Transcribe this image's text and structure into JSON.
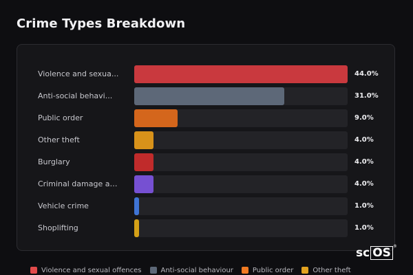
{
  "page": {
    "title": "Crime Types Breakdown",
    "logo_text": "scOS",
    "logo_mark": "®"
  },
  "chart_data": {
    "type": "bar",
    "orientation": "horizontal",
    "title": "Crime Types Breakdown",
    "categories": [
      "Violence and sexua...",
      "Anti-social behavi...",
      "Public order",
      "Other theft",
      "Burglary",
      "Criminal damage an...",
      "Vehicle crime",
      "Shoplifting"
    ],
    "values": [
      44.0,
      31.0,
      9.0,
      4.0,
      4.0,
      4.0,
      1.0,
      1.0
    ],
    "value_labels": [
      "44.0%",
      "31.0%",
      "9.0%",
      "4.0%",
      "4.0%",
      "4.0%",
      "1.0%",
      "1.0%"
    ],
    "colors": [
      "#c9393e",
      "#5d6878",
      "#d4661c",
      "#d8921a",
      "#c02b2b",
      "#7650d2",
      "#3f74d4",
      "#d4a017"
    ],
    "xlim": [
      0,
      44.0
    ],
    "unit": "%",
    "grid": false,
    "legend_position": "bottom",
    "legend": [
      {
        "label": "Violence and sexual offences",
        "color": "#e34b4b"
      },
      {
        "label": "Anti-social behaviour",
        "color": "#5d6878"
      },
      {
        "label": "Public order",
        "color": "#f07a22"
      },
      {
        "label": "Other theft",
        "color": "#e2a21f"
      }
    ]
  }
}
